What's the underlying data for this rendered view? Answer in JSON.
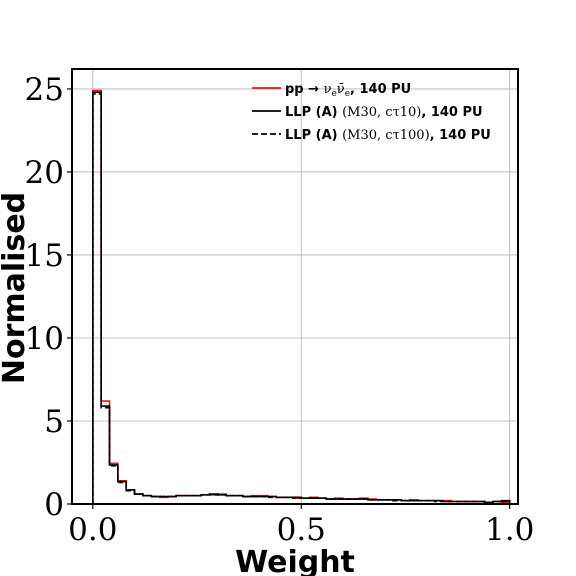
{
  "chart_data": {
    "type": "histogram",
    "xlabel": "Weight",
    "ylabel": "Normalised",
    "xlim": [
      -0.05,
      1.02
    ],
    "ylim": [
      0,
      26.2
    ],
    "xticks": [
      "0.0",
      "0.5",
      "1.0"
    ],
    "xtick_values": [
      0.0,
      0.5,
      1.0
    ],
    "yticks": [
      "0",
      "5",
      "10",
      "15",
      "20",
      "25"
    ],
    "ytick_values": [
      0,
      5,
      10,
      15,
      20,
      25
    ],
    "grid": true,
    "legend_position": "top-right",
    "bin_width": 0.02,
    "bin_start": 0.0,
    "series": [
      {
        "name": "pp → ν_e ν̄_e, 140 PU",
        "legend_main": "pp → ",
        "legend_math": "ν",
        "legend_sub": "e",
        "legend_math2": "ν̄",
        "legend_sub2": "e",
        "legend_tail": ", 140 PU",
        "color": "#e41a1c",
        "style": "solid",
        "values": [
          24.9,
          6.2,
          2.45,
          1.4,
          0.85,
          0.6,
          0.5,
          0.45,
          0.4,
          0.45,
          0.5,
          0.5,
          0.5,
          0.55,
          0.55,
          0.6,
          0.5,
          0.5,
          0.45,
          0.5,
          0.5,
          0.45,
          0.4,
          0.4,
          0.35,
          0.35,
          0.4,
          0.35,
          0.3,
          0.35,
          0.3,
          0.3,
          0.35,
          0.3,
          0.25,
          0.25,
          0.25,
          0.2,
          0.25,
          0.2,
          0.2,
          0.2,
          0.2,
          0.15,
          0.15,
          0.15,
          0.15,
          0.1,
          0.15,
          0.1
        ]
      },
      {
        "name": "LLP (A) (M30, cτ10), 140 PU",
        "legend_main": "LLP (A) ",
        "legend_math": "(M30, cτ10)",
        "legend_tail": ", 140 PU",
        "color": "#000000",
        "style": "solid",
        "values": [
          24.8,
          5.9,
          2.35,
          1.35,
          0.85,
          0.6,
          0.5,
          0.45,
          0.45,
          0.45,
          0.5,
          0.5,
          0.5,
          0.55,
          0.6,
          0.55,
          0.5,
          0.5,
          0.45,
          0.45,
          0.45,
          0.45,
          0.4,
          0.4,
          0.4,
          0.35,
          0.35,
          0.35,
          0.3,
          0.3,
          0.3,
          0.3,
          0.3,
          0.25,
          0.25,
          0.25,
          0.25,
          0.2,
          0.2,
          0.2,
          0.2,
          0.2,
          0.15,
          0.15,
          0.15,
          0.15,
          0.15,
          0.1,
          0.15,
          0.2
        ]
      },
      {
        "name": "LLP (A) (M30, cτ100), 140 PU",
        "legend_main": "LLP (A) ",
        "legend_math": "(M30, cτ100)",
        "legend_tail": ", 140 PU",
        "color": "#000000",
        "style": "dashed",
        "values": [
          24.7,
          5.8,
          2.3,
          1.3,
          0.8,
          0.6,
          0.5,
          0.45,
          0.45,
          0.45,
          0.5,
          0.5,
          0.5,
          0.55,
          0.55,
          0.55,
          0.5,
          0.5,
          0.45,
          0.45,
          0.45,
          0.4,
          0.4,
          0.4,
          0.35,
          0.35,
          0.35,
          0.35,
          0.3,
          0.3,
          0.3,
          0.3,
          0.3,
          0.25,
          0.25,
          0.25,
          0.2,
          0.2,
          0.2,
          0.2,
          0.2,
          0.15,
          0.15,
          0.15,
          0.15,
          0.15,
          0.15,
          0.1,
          0.15,
          0.15
        ]
      }
    ]
  }
}
